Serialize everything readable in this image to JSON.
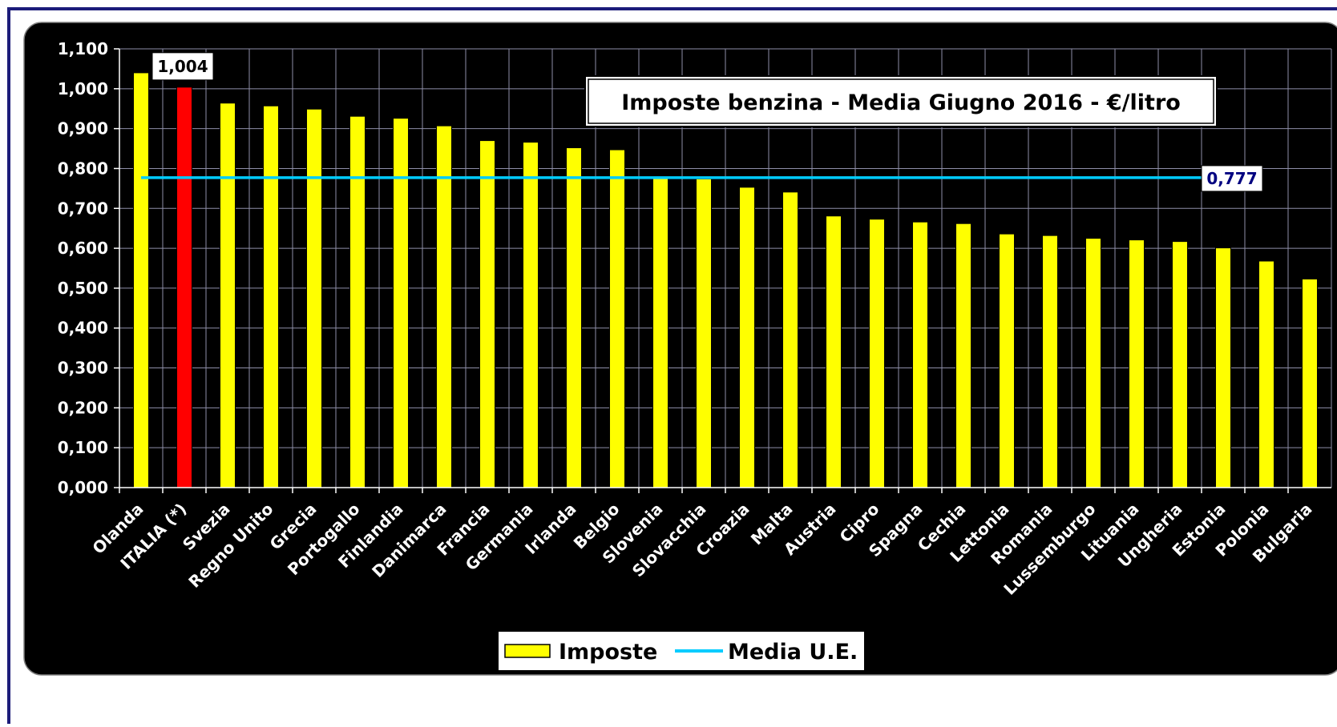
{
  "chart_data": {
    "type": "bar",
    "title": "Imposte benzina - Media Giugno 2016 - €/litro",
    "categories": [
      "Olanda",
      "ITALIA (*)",
      "Svezia",
      "Regno Unito",
      "Grecia",
      "Portogallo",
      "Finlandia",
      "Danimarca",
      "Francia",
      "Germania",
      "Irlanda",
      "Belgio",
      "Slovenia",
      "Slovacchia",
      "Croazia",
      "Malta",
      "Austria",
      "Cipro",
      "Spagna",
      "Cechia",
      "Lettonia",
      "Romania",
      "Lussemburgo",
      "Lituania",
      "Ungheria",
      "Estonia",
      "Polonia",
      "Bulgaria"
    ],
    "series": [
      {
        "name": "Imposte",
        "type": "bar",
        "color": "#ffff00",
        "highlight": {
          "category": "ITALIA (*)",
          "color": "#ff0000"
        },
        "values": [
          1.04,
          1.004,
          0.964,
          0.957,
          0.949,
          0.931,
          0.926,
          0.907,
          0.87,
          0.866,
          0.852,
          0.847,
          0.775,
          0.774,
          0.753,
          0.741,
          0.681,
          0.673,
          0.666,
          0.662,
          0.636,
          0.632,
          0.625,
          0.621,
          0.617,
          0.601,
          0.568,
          0.523
        ]
      },
      {
        "name": "Media U.E.",
        "type": "line",
        "color": "#00ccff",
        "value": 0.777
      }
    ],
    "data_labels": [
      {
        "category": "ITALIA (*)",
        "text": "1,004"
      },
      {
        "series": "Media U.E.",
        "text": "0,777"
      }
    ],
    "y_ticks": [
      "0,000",
      "0,100",
      "0,200",
      "0,300",
      "0,400",
      "0,500",
      "0,600",
      "0,700",
      "0,800",
      "0,900",
      "1,000",
      "1,100"
    ],
    "ylim": [
      0,
      1.1
    ],
    "grid": true,
    "legend": "bottom-center",
    "background": "#000000",
    "text_color": "#ffffff"
  }
}
